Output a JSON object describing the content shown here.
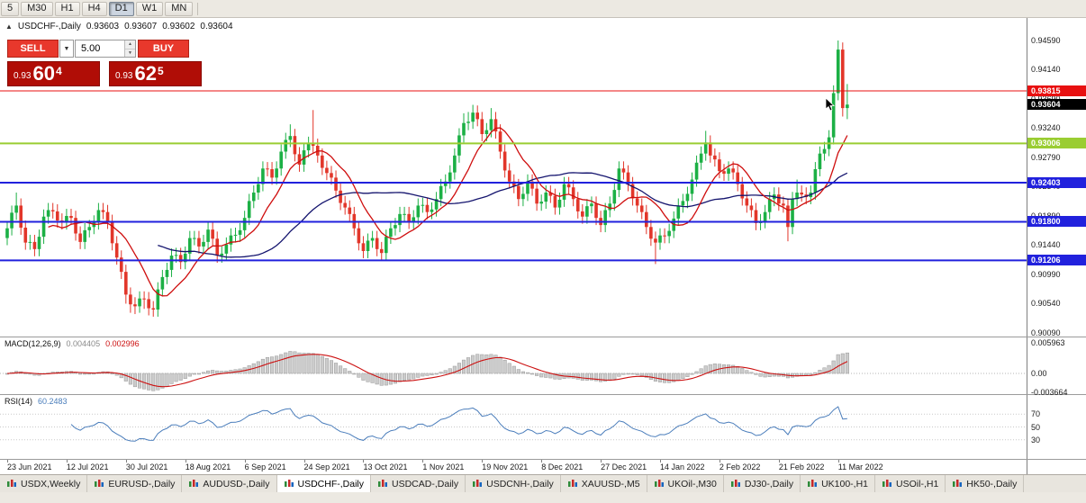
{
  "toolbar": {
    "timeframes": [
      "5",
      "M30",
      "H1",
      "H4",
      "D1",
      "W1",
      "MN"
    ],
    "active": "D1"
  },
  "header": {
    "toggle_arrow": "▲",
    "title": "USDCHF-,Daily",
    "open": "0.93603",
    "high": "0.93607",
    "low": "0.93602",
    "close": "0.93604"
  },
  "trade_panel": {
    "sell_label": "SELL",
    "buy_label": "BUY",
    "volume": "5.00",
    "sell_price": {
      "small": "0.93",
      "big": "60",
      "pip": "4"
    },
    "buy_price": {
      "small": "0.93",
      "big": "62",
      "pip": "5"
    }
  },
  "chart_data": {
    "type": "candlestick",
    "title": "USDCHF-,Daily",
    "y_ticks": [
      "0.94590",
      "0.94140",
      "0.93690",
      "0.93240",
      "0.92790",
      "0.92340",
      "0.91890",
      "0.91440",
      "0.90990",
      "0.90540",
      "0.90090"
    ],
    "levels": [
      {
        "name": "resistance-line",
        "price": 0.93815,
        "label": "0.93815",
        "color": "#e81010",
        "width": 1
      },
      {
        "name": "support-line-1",
        "price": 0.93006,
        "label": "0.93006",
        "color": "#9acd32",
        "width": 2
      },
      {
        "name": "support-line-2",
        "price": 0.92403,
        "label": "0.92403",
        "color": "#2121dd",
        "width": 2
      },
      {
        "name": "support-line-3",
        "price": 0.918,
        "label": "0.91800",
        "color": "#2121dd",
        "width": 2
      },
      {
        "name": "support-line-4",
        "price": 0.91206,
        "label": "0.91206",
        "color": "#2121dd",
        "width": 2
      }
    ],
    "current_price": {
      "value": 0.93604,
      "label": "0.93604",
      "color": "#000000"
    },
    "colors": {
      "up": "#1cb045",
      "down": "#e2362a"
    },
    "ma": {
      "fast_color": "#cf0e0e",
      "slow_color": "#14146e"
    },
    "macd": {
      "label": "MACD(12,26,9)",
      "main_value": "0.004405",
      "signal_value": "0.002996",
      "hist_color": "#cccccc",
      "hist_border": "#999999",
      "signal_color": "#cc1111",
      "axis_labels": [
        {
          "text": "0.005963",
          "value": 0.005963
        },
        {
          "text": "0.00",
          "value": 0
        },
        {
          "text": "-0.003664",
          "value": -0.003664
        }
      ]
    },
    "rsi": {
      "label": "RSI(14)",
      "value": "60.2483",
      "color": "#4a7dbb",
      "levels": [
        {
          "text": "70",
          "value": 70
        },
        {
          "text": "50",
          "value": 50
        },
        {
          "text": "30",
          "value": 30
        }
      ]
    },
    "x_labels": [
      {
        "i": 0,
        "text": "23 Jun 2021"
      },
      {
        "i": 13,
        "text": "12 Jul 2021"
      },
      {
        "i": 26,
        "text": "30 Jul 2021"
      },
      {
        "i": 39,
        "text": "18 Aug 2021"
      },
      {
        "i": 52,
        "text": "6 Sep 2021"
      },
      {
        "i": 65,
        "text": "24 Sep 2021"
      },
      {
        "i": 78,
        "text": "13 Oct 2021"
      },
      {
        "i": 91,
        "text": "1 Nov 2021"
      },
      {
        "i": 104,
        "text": "19 Nov 2021"
      },
      {
        "i": 117,
        "text": "8 Dec 2021"
      },
      {
        "i": 130,
        "text": "27 Dec 2021"
      },
      {
        "i": 143,
        "text": "14 Jan 2022"
      },
      {
        "i": 156,
        "text": "2 Feb 2022"
      },
      {
        "i": 169,
        "text": "21 Feb 2022"
      },
      {
        "i": 182,
        "text": "11 Mar 2022"
      }
    ],
    "candles": [
      [
        0.9155,
        0.9181,
        0.9144,
        0.917
      ],
      [
        0.917,
        0.9205,
        0.9159,
        0.9194
      ],
      [
        0.9194,
        0.9225,
        0.9183,
        0.9205
      ],
      [
        0.9205,
        0.9216,
        0.916,
        0.9171
      ],
      [
        0.9171,
        0.9182,
        0.9137,
        0.9148
      ],
      [
        0.9148,
        0.916,
        0.9137,
        0.9149
      ],
      [
        0.9149,
        0.916,
        0.9127,
        0.9138
      ],
      [
        0.9138,
        0.9168,
        0.9127,
        0.9157
      ],
      [
        0.9157,
        0.9199,
        0.9146,
        0.9188
      ],
      [
        0.9188,
        0.9209,
        0.9177,
        0.9198
      ],
      [
        0.9198,
        0.9209,
        0.9185,
        0.9196
      ],
      [
        0.9196,
        0.9207,
        0.9171,
        0.9182
      ],
      [
        0.9182,
        0.9193,
        0.9168,
        0.9179
      ],
      [
        0.9179,
        0.92,
        0.9168,
        0.9189
      ],
      [
        0.9189,
        0.92,
        0.9175,
        0.9186
      ],
      [
        0.9186,
        0.9197,
        0.9151,
        0.9162
      ],
      [
        0.9162,
        0.9173,
        0.9138,
        0.9149
      ],
      [
        0.9149,
        0.9178,
        0.9138,
        0.9167
      ],
      [
        0.9167,
        0.9183,
        0.9156,
        0.9172
      ],
      [
        0.9172,
        0.919,
        0.9161,
        0.9179
      ],
      [
        0.9179,
        0.9209,
        0.9168,
        0.9198
      ],
      [
        0.9198,
        0.9209,
        0.9184,
        0.9195
      ],
      [
        0.9195,
        0.9206,
        0.9169,
        0.918
      ],
      [
        0.918,
        0.9191,
        0.9136,
        0.9147
      ],
      [
        0.9147,
        0.9158,
        0.9114,
        0.9125
      ],
      [
        0.9125,
        0.9136,
        0.9092,
        0.9103
      ],
      [
        0.9103,
        0.9114,
        0.9054,
        0.9068
      ],
      [
        0.9068,
        0.9079,
        0.904,
        0.9053
      ],
      [
        0.9053,
        0.9064,
        0.9038,
        0.905
      ],
      [
        0.905,
        0.9073,
        0.904,
        0.9062
      ],
      [
        0.9062,
        0.9073,
        0.9046,
        0.9061
      ],
      [
        0.9061,
        0.9072,
        0.9036,
        0.9047
      ],
      [
        0.9047,
        0.9058,
        0.9034,
        0.9045
      ],
      [
        0.9045,
        0.9087,
        0.9034,
        0.9076
      ],
      [
        0.9076,
        0.9106,
        0.9065,
        0.9095
      ],
      [
        0.9095,
        0.9117,
        0.9084,
        0.9106
      ],
      [
        0.9106,
        0.9139,
        0.9095,
        0.9128
      ],
      [
        0.9128,
        0.914,
        0.9117,
        0.9129
      ],
      [
        0.9129,
        0.914,
        0.9107,
        0.9118
      ],
      [
        0.9118,
        0.9142,
        0.9107,
        0.9131
      ],
      [
        0.9131,
        0.9166,
        0.912,
        0.9155
      ],
      [
        0.9155,
        0.9166,
        0.9144,
        0.9155
      ],
      [
        0.9155,
        0.9166,
        0.9131,
        0.9142
      ],
      [
        0.9142,
        0.916,
        0.9131,
        0.9149
      ],
      [
        0.9149,
        0.9179,
        0.9138,
        0.9168
      ],
      [
        0.9168,
        0.9179,
        0.9143,
        0.9154
      ],
      [
        0.9154,
        0.9165,
        0.9117,
        0.9128
      ],
      [
        0.9128,
        0.9142,
        0.9117,
        0.9131
      ],
      [
        0.9131,
        0.9156,
        0.912,
        0.9145
      ],
      [
        0.9145,
        0.917,
        0.9134,
        0.9159
      ],
      [
        0.9159,
        0.9171,
        0.9148,
        0.916
      ],
      [
        0.916,
        0.9178,
        0.9149,
        0.9167
      ],
      [
        0.9167,
        0.9197,
        0.9156,
        0.9186
      ],
      [
        0.9186,
        0.9223,
        0.9175,
        0.9212
      ],
      [
        0.9212,
        0.9236,
        0.9201,
        0.9225
      ],
      [
        0.9225,
        0.9249,
        0.9214,
        0.9238
      ],
      [
        0.9238,
        0.9273,
        0.9227,
        0.9262
      ],
      [
        0.9262,
        0.9272,
        0.925,
        0.9261
      ],
      [
        0.9261,
        0.9272,
        0.9237,
        0.9248
      ],
      [
        0.9248,
        0.9273,
        0.9237,
        0.9262
      ],
      [
        0.9262,
        0.9299,
        0.9251,
        0.9288
      ],
      [
        0.9288,
        0.9317,
        0.9277,
        0.9306
      ],
      [
        0.9306,
        0.933,
        0.9295,
        0.9312
      ],
      [
        0.9312,
        0.9323,
        0.9273,
        0.9284
      ],
      [
        0.9284,
        0.9295,
        0.9257,
        0.9268
      ],
      [
        0.9268,
        0.9301,
        0.9257,
        0.929
      ],
      [
        0.929,
        0.9311,
        0.9279,
        0.93
      ],
      [
        0.93,
        0.9352,
        0.9286,
        0.9297
      ],
      [
        0.9297,
        0.9308,
        0.9271,
        0.9282
      ],
      [
        0.9282,
        0.9293,
        0.9252,
        0.9263
      ],
      [
        0.9263,
        0.9274,
        0.9244,
        0.9255
      ],
      [
        0.9255,
        0.9266,
        0.9237,
        0.9248
      ],
      [
        0.9248,
        0.9259,
        0.9217,
        0.9228
      ],
      [
        0.9228,
        0.9239,
        0.9198,
        0.9209
      ],
      [
        0.9209,
        0.922,
        0.9191,
        0.9202
      ],
      [
        0.9202,
        0.9213,
        0.9181,
        0.9192
      ],
      [
        0.9192,
        0.9203,
        0.9159,
        0.917
      ],
      [
        0.917,
        0.9181,
        0.9136,
        0.9147
      ],
      [
        0.9147,
        0.9158,
        0.9124,
        0.9135
      ],
      [
        0.9135,
        0.9162,
        0.9124,
        0.9151
      ],
      [
        0.9151,
        0.9166,
        0.914,
        0.9155
      ],
      [
        0.9155,
        0.9166,
        0.9127,
        0.9138
      ],
      [
        0.9138,
        0.9149,
        0.9121,
        0.9132
      ],
      [
        0.9132,
        0.9168,
        0.9121,
        0.9157
      ],
      [
        0.9157,
        0.9181,
        0.9146,
        0.917
      ],
      [
        0.917,
        0.9186,
        0.9159,
        0.9175
      ],
      [
        0.9175,
        0.9203,
        0.9164,
        0.9192
      ],
      [
        0.9192,
        0.9203,
        0.9181,
        0.9192
      ],
      [
        0.9192,
        0.9203,
        0.9169,
        0.918
      ],
      [
        0.918,
        0.9198,
        0.9169,
        0.9187
      ],
      [
        0.9187,
        0.9216,
        0.9176,
        0.9205
      ],
      [
        0.9205,
        0.9217,
        0.9194,
        0.9206
      ],
      [
        0.9206,
        0.9217,
        0.9184,
        0.9195
      ],
      [
        0.9195,
        0.921,
        0.9184,
        0.9199
      ],
      [
        0.9199,
        0.9226,
        0.9188,
        0.9215
      ],
      [
        0.9215,
        0.9246,
        0.9204,
        0.9235
      ],
      [
        0.9235,
        0.9253,
        0.9224,
        0.9242
      ],
      [
        0.9242,
        0.9267,
        0.9231,
        0.9256
      ],
      [
        0.9256,
        0.9293,
        0.9245,
        0.9282
      ],
      [
        0.9282,
        0.9324,
        0.9271,
        0.9313
      ],
      [
        0.9313,
        0.9347,
        0.9302,
        0.9332
      ],
      [
        0.9332,
        0.9349,
        0.9321,
        0.9334
      ],
      [
        0.9334,
        0.936,
        0.9323,
        0.9348
      ],
      [
        0.9348,
        0.9359,
        0.9327,
        0.9338
      ],
      [
        0.9338,
        0.9349,
        0.9304,
        0.9315
      ],
      [
        0.9315,
        0.9332,
        0.9304,
        0.9321
      ],
      [
        0.9321,
        0.9355,
        0.931,
        0.9338
      ],
      [
        0.9338,
        0.9349,
        0.9308,
        0.9319
      ],
      [
        0.9319,
        0.933,
        0.9277,
        0.9288
      ],
      [
        0.9288,
        0.9299,
        0.9248,
        0.9259
      ],
      [
        0.9259,
        0.927,
        0.9231,
        0.9242
      ],
      [
        0.9242,
        0.9253,
        0.9224,
        0.9235
      ],
      [
        0.9235,
        0.9246,
        0.9204,
        0.9215
      ],
      [
        0.9215,
        0.9234,
        0.9204,
        0.9223
      ],
      [
        0.9223,
        0.9253,
        0.9212,
        0.9242
      ],
      [
        0.9242,
        0.9253,
        0.922,
        0.9231
      ],
      [
        0.9231,
        0.9242,
        0.9197,
        0.9208
      ],
      [
        0.9208,
        0.9222,
        0.9197,
        0.9211
      ],
      [
        0.9211,
        0.9236,
        0.92,
        0.9225
      ],
      [
        0.9225,
        0.9236,
        0.9209,
        0.922
      ],
      [
        0.922,
        0.9231,
        0.9191,
        0.9202
      ],
      [
        0.9202,
        0.9225,
        0.9191,
        0.9214
      ],
      [
        0.9214,
        0.9249,
        0.9203,
        0.9238
      ],
      [
        0.9238,
        0.9249,
        0.9222,
        0.9233
      ],
      [
        0.9233,
        0.9244,
        0.9204,
        0.9215
      ],
      [
        0.9215,
        0.9226,
        0.9185,
        0.9196
      ],
      [
        0.9196,
        0.9207,
        0.9177,
        0.9188
      ],
      [
        0.9188,
        0.9215,
        0.9177,
        0.9204
      ],
      [
        0.9204,
        0.9219,
        0.9193,
        0.9208
      ],
      [
        0.9208,
        0.9219,
        0.9175,
        0.9186
      ],
      [
        0.9186,
        0.9197,
        0.9164,
        0.9175
      ],
      [
        0.9175,
        0.9209,
        0.9164,
        0.9198
      ],
      [
        0.9198,
        0.9219,
        0.9187,
        0.9208
      ],
      [
        0.9208,
        0.924,
        0.9197,
        0.9229
      ],
      [
        0.9229,
        0.9273,
        0.9218,
        0.9262
      ],
      [
        0.9262,
        0.9273,
        0.9245,
        0.9256
      ],
      [
        0.9256,
        0.9267,
        0.9227,
        0.9238
      ],
      [
        0.9238,
        0.9249,
        0.9205,
        0.9216
      ],
      [
        0.9216,
        0.9227,
        0.9194,
        0.9205
      ],
      [
        0.9205,
        0.9216,
        0.9184,
        0.9195
      ],
      [
        0.9195,
        0.9206,
        0.9161,
        0.9172
      ],
      [
        0.9172,
        0.9183,
        0.9143,
        0.9154
      ],
      [
        0.9154,
        0.9165,
        0.9115,
        0.9148
      ],
      [
        0.9148,
        0.917,
        0.9137,
        0.9159
      ],
      [
        0.9159,
        0.917,
        0.9147,
        0.9158
      ],
      [
        0.9158,
        0.9177,
        0.9147,
        0.9166
      ],
      [
        0.9166,
        0.9196,
        0.9155,
        0.9185
      ],
      [
        0.9185,
        0.9216,
        0.9174,
        0.9205
      ],
      [
        0.9205,
        0.9223,
        0.9194,
        0.9212
      ],
      [
        0.9212,
        0.9234,
        0.9201,
        0.9223
      ],
      [
        0.9223,
        0.9256,
        0.9212,
        0.9245
      ],
      [
        0.9245,
        0.9282,
        0.9234,
        0.9271
      ],
      [
        0.9271,
        0.9296,
        0.926,
        0.9285
      ],
      [
        0.9285,
        0.932,
        0.9274,
        0.9302
      ],
      [
        0.9302,
        0.9313,
        0.9271,
        0.9282
      ],
      [
        0.9282,
        0.9293,
        0.9265,
        0.9276
      ],
      [
        0.9276,
        0.9287,
        0.9247,
        0.9258
      ],
      [
        0.9258,
        0.9269,
        0.9243,
        0.9254
      ],
      [
        0.9254,
        0.9273,
        0.9243,
        0.9262
      ],
      [
        0.9262,
        0.9273,
        0.9245,
        0.9256
      ],
      [
        0.9256,
        0.9267,
        0.9227,
        0.9238
      ],
      [
        0.9238,
        0.9249,
        0.9205,
        0.9216
      ],
      [
        0.9216,
        0.9227,
        0.9194,
        0.9205
      ],
      [
        0.9205,
        0.9216,
        0.9187,
        0.9198
      ],
      [
        0.9198,
        0.9209,
        0.9167,
        0.9178
      ],
      [
        0.9178,
        0.9192,
        0.9167,
        0.9181
      ],
      [
        0.9181,
        0.9206,
        0.917,
        0.9195
      ],
      [
        0.9195,
        0.9226,
        0.9184,
        0.9215
      ],
      [
        0.9215,
        0.9233,
        0.9204,
        0.9222
      ],
      [
        0.9222,
        0.9233,
        0.9197,
        0.9208
      ],
      [
        0.9208,
        0.9219,
        0.9194,
        0.9205
      ],
      [
        0.9205,
        0.9216,
        0.915,
        0.9172
      ],
      [
        0.9172,
        0.9226,
        0.9161,
        0.9215
      ],
      [
        0.9215,
        0.9245,
        0.9204,
        0.9225
      ],
      [
        0.9225,
        0.9236,
        0.9211,
        0.9222
      ],
      [
        0.9222,
        0.9233,
        0.9207,
        0.9218
      ],
      [
        0.9218,
        0.9236,
        0.9207,
        0.9225
      ],
      [
        0.9225,
        0.9272,
        0.9214,
        0.9261
      ],
      [
        0.9261,
        0.9296,
        0.925,
        0.9285
      ],
      [
        0.9285,
        0.9303,
        0.9274,
        0.9292
      ],
      [
        0.9292,
        0.9321,
        0.9281,
        0.931
      ],
      [
        0.931,
        0.939,
        0.9299,
        0.9378
      ],
      [
        0.9378,
        0.9459,
        0.9367,
        0.9445
      ],
      [
        0.9445,
        0.9456,
        0.9342,
        0.9355
      ],
      [
        0.9355,
        0.9392,
        0.9338,
        0.93604
      ]
    ]
  },
  "tabs": {
    "items": [
      "USDX,Weekly",
      "EURUSD-,Daily",
      "AUDUSD-,Daily",
      "USDCHF-,Daily",
      "USDCAD-,Daily",
      "USDCNH-,Daily",
      "XAUUSD-,M5",
      "UKOil-,M30",
      "DJ30-,Daily",
      "UK100-,H1",
      "USOil-,H1",
      "HK50-,Daily"
    ],
    "active_index": 3
  }
}
